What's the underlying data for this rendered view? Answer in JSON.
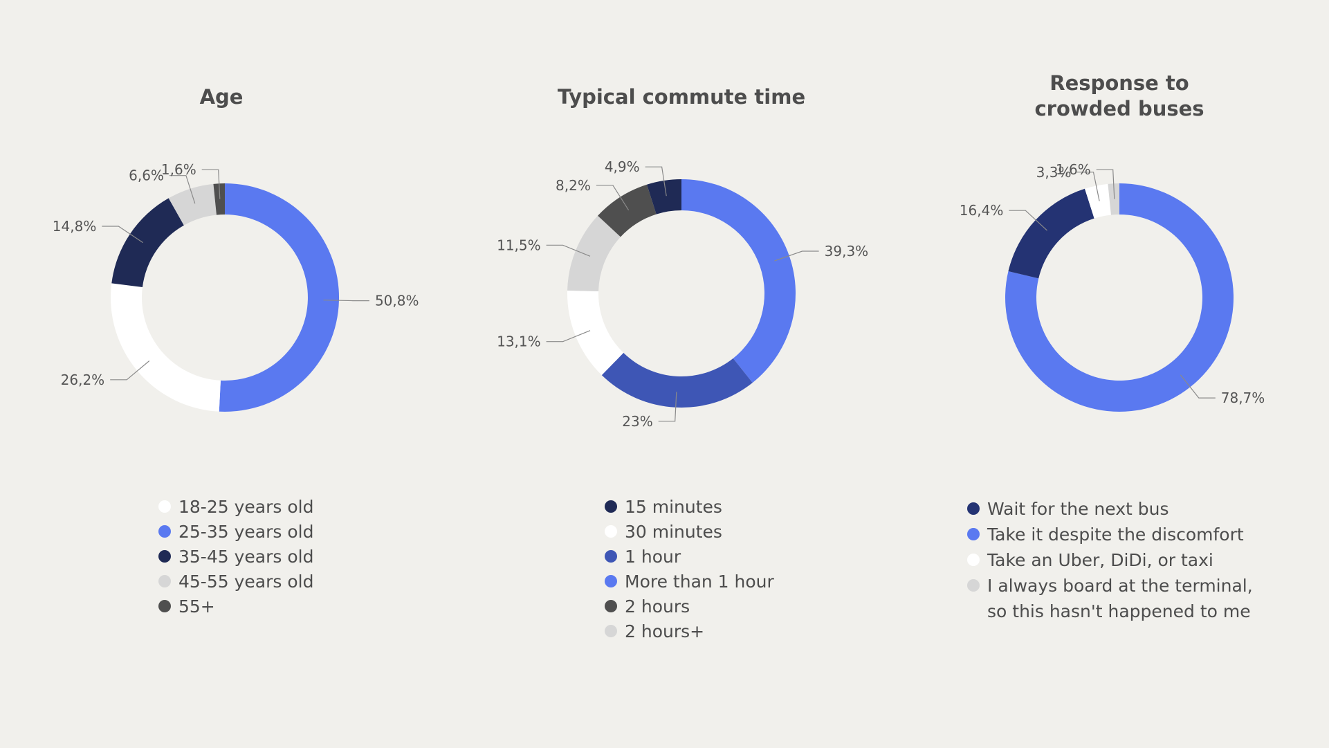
{
  "chart_data": [
    {
      "type": "pie",
      "title": "Age",
      "slices": [
        {
          "label": "25-35 years old",
          "value": 50.8,
          "display": "50,8%",
          "color": "#5a79f0"
        },
        {
          "label": "18-25 years old",
          "value": 26.2,
          "display": "26,2%",
          "color": "#ffffff"
        },
        {
          "label": "35-45 years old",
          "value": 14.8,
          "display": "14,8%",
          "color": "#1f2a55"
        },
        {
          "label": "45-55 years old",
          "value": 6.6,
          "display": "6,6%",
          "color": "#d6d6d6"
        },
        {
          "label": "55+",
          "value": 1.6,
          "display": "1,6%",
          "color": "#4f4f4f"
        }
      ],
      "legend": [
        {
          "label": "18-25 years old",
          "color": "#ffffff"
        },
        {
          "label": "25-35 years old",
          "color": "#5a79f0"
        },
        {
          "label": "35-45 years old",
          "color": "#1f2a55"
        },
        {
          "label": "45-55 years old",
          "color": "#d6d6d6"
        },
        {
          "label": "55+",
          "color": "#4f4f4f"
        }
      ],
      "legend_placement": "bottom"
    },
    {
      "type": "pie",
      "title": "Typical commute time",
      "slices": [
        {
          "label": "More than 1 hour",
          "value": 39.3,
          "display": "39,3%",
          "color": "#5a79f0"
        },
        {
          "label": "1 hour",
          "value": 23,
          "display": "23%",
          "color": "#3e56b5"
        },
        {
          "label": "30 minutes",
          "value": 13.1,
          "display": "13,1%",
          "color": "#ffffff"
        },
        {
          "label": "2 hours+",
          "value": 11.5,
          "display": "11,5%",
          "color": "#d6d6d6"
        },
        {
          "label": "2 hours",
          "value": 8.2,
          "display": "8,2%",
          "color": "#4f4f4f"
        },
        {
          "label": "15 minutes",
          "value": 4.9,
          "display": "4,9%",
          "color": "#1f2a55"
        }
      ],
      "legend": [
        {
          "label": "15 minutes",
          "color": "#1f2a55"
        },
        {
          "label": "30 minutes",
          "color": "#ffffff"
        },
        {
          "label": "1 hour",
          "color": "#3e56b5"
        },
        {
          "label": "More than 1 hour",
          "color": "#5a79f0"
        },
        {
          "label": "2 hours",
          "color": "#4f4f4f"
        },
        {
          "label": "2 hours+",
          "color": "#d6d6d6"
        }
      ],
      "legend_placement": "bottom"
    },
    {
      "type": "pie",
      "title": "Response to crowded buses",
      "title_lines": [
        "Response to",
        "crowded buses"
      ],
      "slices": [
        {
          "label": "Take it despite the discomfort",
          "value": 78.7,
          "display": "78,7%",
          "color": "#5a79f0"
        },
        {
          "label": "Wait for the next bus",
          "value": 16.4,
          "display": "16,4%",
          "color": "#243373"
        },
        {
          "label": "Take an Uber, DiDi, or taxi",
          "value": 3.3,
          "display": "3,3%",
          "color": "#ffffff"
        },
        {
          "label": "I always board at the terminal, so this hasn't happened to me",
          "value": 1.6,
          "display": "1,6%",
          "color": "#d6d6d6"
        }
      ],
      "legend": [
        {
          "label": "Wait for the next bus",
          "color": "#243373"
        },
        {
          "label": "Take it despite the discomfort",
          "color": "#5a79f0"
        },
        {
          "label": "Take an Uber, DiDi, or taxi",
          "color": "#ffffff"
        },
        {
          "label": "I always board at the terminal,",
          "label_line2": "so this hasn't happened to me",
          "color": "#d6d6d6"
        }
      ],
      "legend_placement": "bottom"
    }
  ]
}
